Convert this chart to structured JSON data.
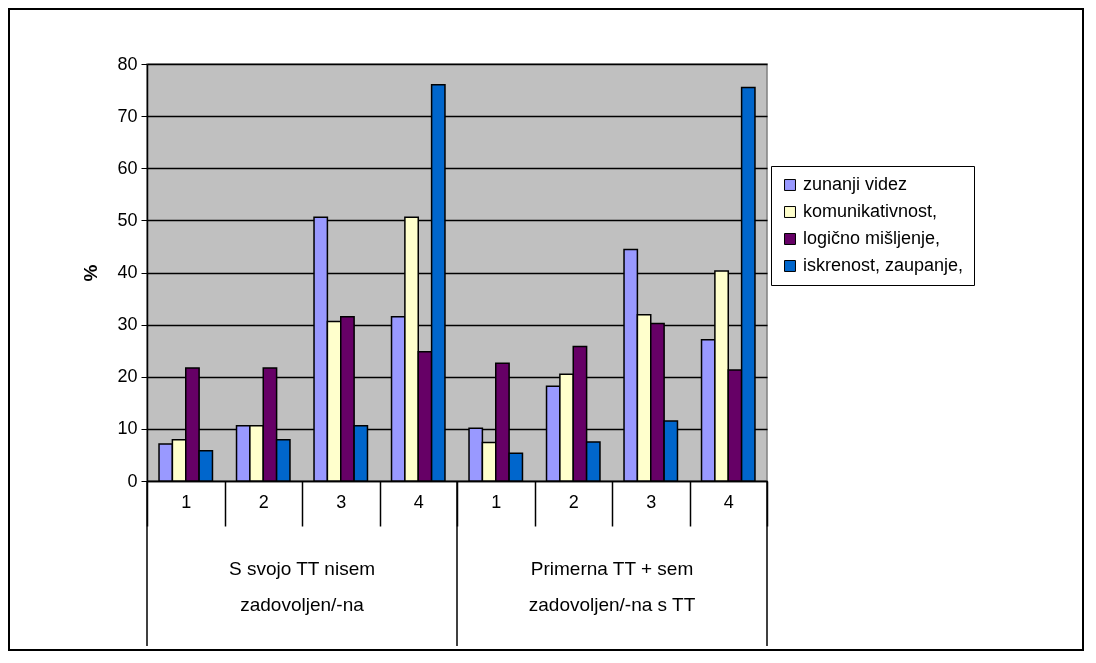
{
  "chart_data": {
    "type": "bar",
    "ylabel": "%",
    "categories": [
      "1",
      "2",
      "3",
      "4",
      "1",
      "2",
      "3",
      "4"
    ],
    "series": [
      {
        "name": "zunanji videz",
        "color": "#9999ff",
        "values": [
          7.1,
          10.6,
          50.6,
          31.5,
          10.1,
          18.2,
          44.4,
          27.1
        ]
      },
      {
        "name": "komunikativnost,",
        "color": "#ffffcc",
        "values": [
          7.9,
          10.6,
          30.6,
          50.6,
          7.4,
          20.5,
          31.9,
          40.3
        ]
      },
      {
        "name": "logično mišljenje,",
        "color": "#660066",
        "values": [
          21.7,
          21.7,
          31.5,
          24.8,
          22.6,
          25.8,
          30.2,
          21.3
        ]
      },
      {
        "name": "iskrenost, zaupanje,",
        "color": "#0066cc",
        "values": [
          5.8,
          7.9,
          10.6,
          76.0,
          5.3,
          7.5,
          11.5,
          75.5
        ]
      }
    ],
    "ylim": [
      0,
      80
    ],
    "yticks": [
      0,
      10,
      20,
      30,
      40,
      50,
      60,
      70,
      80
    ],
    "grid": "y",
    "legend": "right",
    "annotations": [
      "S svojo  TT nisem\nzadovoljen/-na",
      "Primerna TT + sem\nzadovoljen/-na s TT"
    ]
  }
}
